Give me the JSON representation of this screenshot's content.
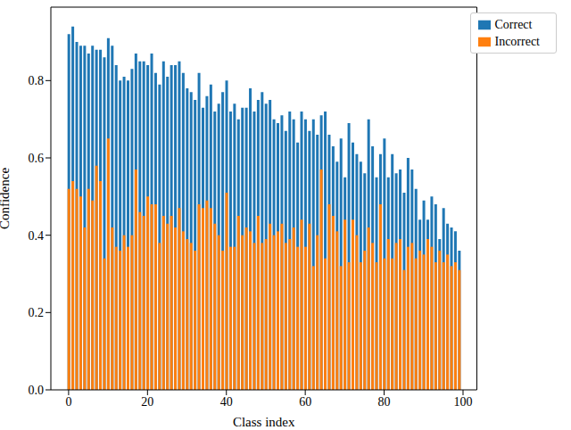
{
  "chart_data": {
    "type": "bar",
    "x_label": "Class index",
    "y_label": "Confidence",
    "x": [
      0,
      1,
      2,
      3,
      4,
      5,
      6,
      7,
      8,
      9,
      10,
      11,
      12,
      13,
      14,
      15,
      16,
      17,
      18,
      19,
      20,
      21,
      22,
      23,
      24,
      25,
      26,
      27,
      28,
      29,
      30,
      31,
      32,
      33,
      34,
      35,
      36,
      37,
      38,
      39,
      40,
      41,
      42,
      43,
      44,
      45,
      46,
      47,
      48,
      49,
      50,
      51,
      52,
      53,
      54,
      55,
      56,
      57,
      58,
      59,
      60,
      61,
      62,
      63,
      64,
      65,
      66,
      67,
      68,
      69,
      70,
      71,
      72,
      73,
      74,
      75,
      76,
      77,
      78,
      79,
      80,
      81,
      82,
      83,
      84,
      85,
      86,
      87,
      88,
      89,
      90,
      91,
      92,
      93,
      94,
      95,
      96,
      97,
      98,
      99
    ],
    "series": [
      {
        "name": "Correct",
        "color": "#1f77b4",
        "values": [
          0.92,
          0.94,
          0.9,
          0.89,
          0.89,
          0.87,
          0.89,
          0.88,
          0.88,
          0.86,
          0.91,
          0.89,
          0.84,
          0.8,
          0.81,
          0.8,
          0.83,
          0.87,
          0.85,
          0.85,
          0.84,
          0.87,
          0.82,
          0.79,
          0.85,
          0.81,
          0.84,
          0.84,
          0.85,
          0.82,
          0.78,
          0.77,
          0.75,
          0.82,
          0.73,
          0.76,
          0.79,
          0.72,
          0.74,
          0.77,
          0.8,
          0.72,
          0.74,
          0.7,
          0.73,
          0.73,
          0.78,
          0.72,
          0.75,
          0.77,
          0.74,
          0.75,
          0.7,
          0.69,
          0.71,
          0.67,
          0.72,
          0.7,
          0.64,
          0.72,
          0.7,
          0.67,
          0.7,
          0.66,
          0.71,
          0.72,
          0.66,
          0.63,
          0.59,
          0.65,
          0.55,
          0.69,
          0.64,
          0.61,
          0.59,
          0.56,
          0.7,
          0.63,
          0.55,
          0.61,
          0.65,
          0.55,
          0.61,
          0.56,
          0.57,
          0.51,
          0.6,
          0.57,
          0.52,
          0.44,
          0.49,
          0.44,
          0.5,
          0.48,
          0.39,
          0.47,
          0.43,
          0.42,
          0.41,
          0.36
        ]
      },
      {
        "name": "Incorrect",
        "color": "#ff7f0e",
        "values": [
          0.52,
          0.54,
          0.52,
          0.5,
          0.42,
          0.52,
          0.49,
          0.58,
          0.54,
          0.34,
          0.65,
          0.42,
          0.37,
          0.36,
          0.4,
          0.37,
          0.4,
          0.57,
          0.46,
          0.45,
          0.5,
          0.48,
          0.48,
          0.38,
          0.45,
          0.43,
          0.45,
          0.42,
          0.47,
          0.41,
          0.39,
          0.38,
          0.36,
          0.48,
          0.47,
          0.49,
          0.47,
          0.43,
          0.4,
          0.36,
          0.51,
          0.37,
          0.37,
          0.45,
          0.4,
          0.42,
          0.41,
          0.38,
          0.45,
          0.38,
          0.39,
          0.43,
          0.4,
          0.41,
          0.43,
          0.38,
          0.39,
          0.42,
          0.37,
          0.44,
          0.37,
          0.43,
          0.32,
          0.4,
          0.57,
          0.34,
          0.48,
          0.45,
          0.41,
          0.32,
          0.44,
          0.33,
          0.44,
          0.4,
          0.33,
          0.36,
          0.42,
          0.38,
          0.33,
          0.48,
          0.34,
          0.39,
          0.34,
          0.38,
          0.39,
          0.31,
          0.37,
          0.38,
          0.34,
          0.36,
          0.35,
          0.39,
          0.37,
          0.33,
          0.36,
          0.33,
          0.35,
          0.32,
          0.33,
          0.31
        ]
      }
    ],
    "xlim": [
      -4.5,
      103.5
    ],
    "xticks": [
      0,
      20,
      40,
      60,
      80,
      100
    ],
    "ylim": [
      0,
      0.99
    ],
    "yticks": [
      {
        "value": 0,
        "label": "0.0"
      },
      0.2,
      0.4,
      0.6,
      0.8
    ],
    "legend": "upper right",
    "grid": false
  }
}
